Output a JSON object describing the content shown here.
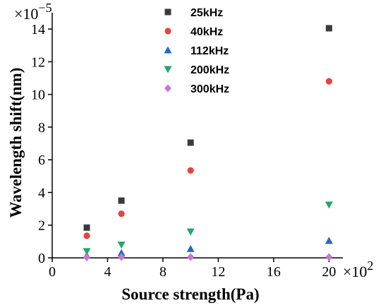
{
  "chart_data": {
    "type": "scatter",
    "title": "",
    "xlabel": "Source strength(Pa)",
    "ylabel": "Wavelength shift(nm)",
    "x_multiplier": "×10",
    "x_multiplier_exp": "2",
    "y_multiplier": "×10",
    "y_multiplier_exp": "−5",
    "xlim": [
      0,
      21
    ],
    "ylim": [
      0,
      15
    ],
    "x_ticks": [
      0,
      4,
      8,
      12,
      16,
      20
    ],
    "x_tick_labels": [
      "0",
      "4",
      "8",
      "12",
      "16",
      "20"
    ],
    "y_ticks": [
      0,
      2,
      4,
      6,
      8,
      10,
      12,
      14
    ],
    "y_tick_labels": [
      "0",
      "2",
      "4",
      "6",
      "8",
      "10",
      "12",
      "14"
    ],
    "grid": false,
    "legend_position": "top-center",
    "series": [
      {
        "name": "25kHz",
        "color": "#3a3a3a",
        "marker": "square",
        "points": [
          [
            2.5,
            1.85
          ],
          [
            5,
            3.5
          ],
          [
            10,
            7.05
          ],
          [
            20,
            14.05
          ]
        ]
      },
      {
        "name": "40kHz",
        "color": "#e8423c",
        "marker": "circle",
        "points": [
          [
            2.5,
            1.35
          ],
          [
            5,
            2.7
          ],
          [
            10,
            5.35
          ],
          [
            20,
            10.8
          ]
        ]
      },
      {
        "name": "112kHz",
        "color": "#2469c8",
        "marker": "triangle-up",
        "points": [
          [
            2.5,
            0.15
          ],
          [
            5,
            0.3
          ],
          [
            10,
            0.55
          ],
          [
            20,
            1.05
          ]
        ]
      },
      {
        "name": "200kHz",
        "color": "#1fa86a",
        "marker": "triangle-down",
        "points": [
          [
            2.5,
            0.4
          ],
          [
            5,
            0.8
          ],
          [
            10,
            1.6
          ],
          [
            20,
            3.25
          ]
        ]
      },
      {
        "name": "300kHz",
        "color": "#c874d8",
        "marker": "diamond",
        "points": [
          [
            2.5,
            0.03
          ],
          [
            5,
            0.05
          ],
          [
            10,
            0.05
          ],
          [
            20,
            0.05
          ]
        ]
      }
    ]
  }
}
